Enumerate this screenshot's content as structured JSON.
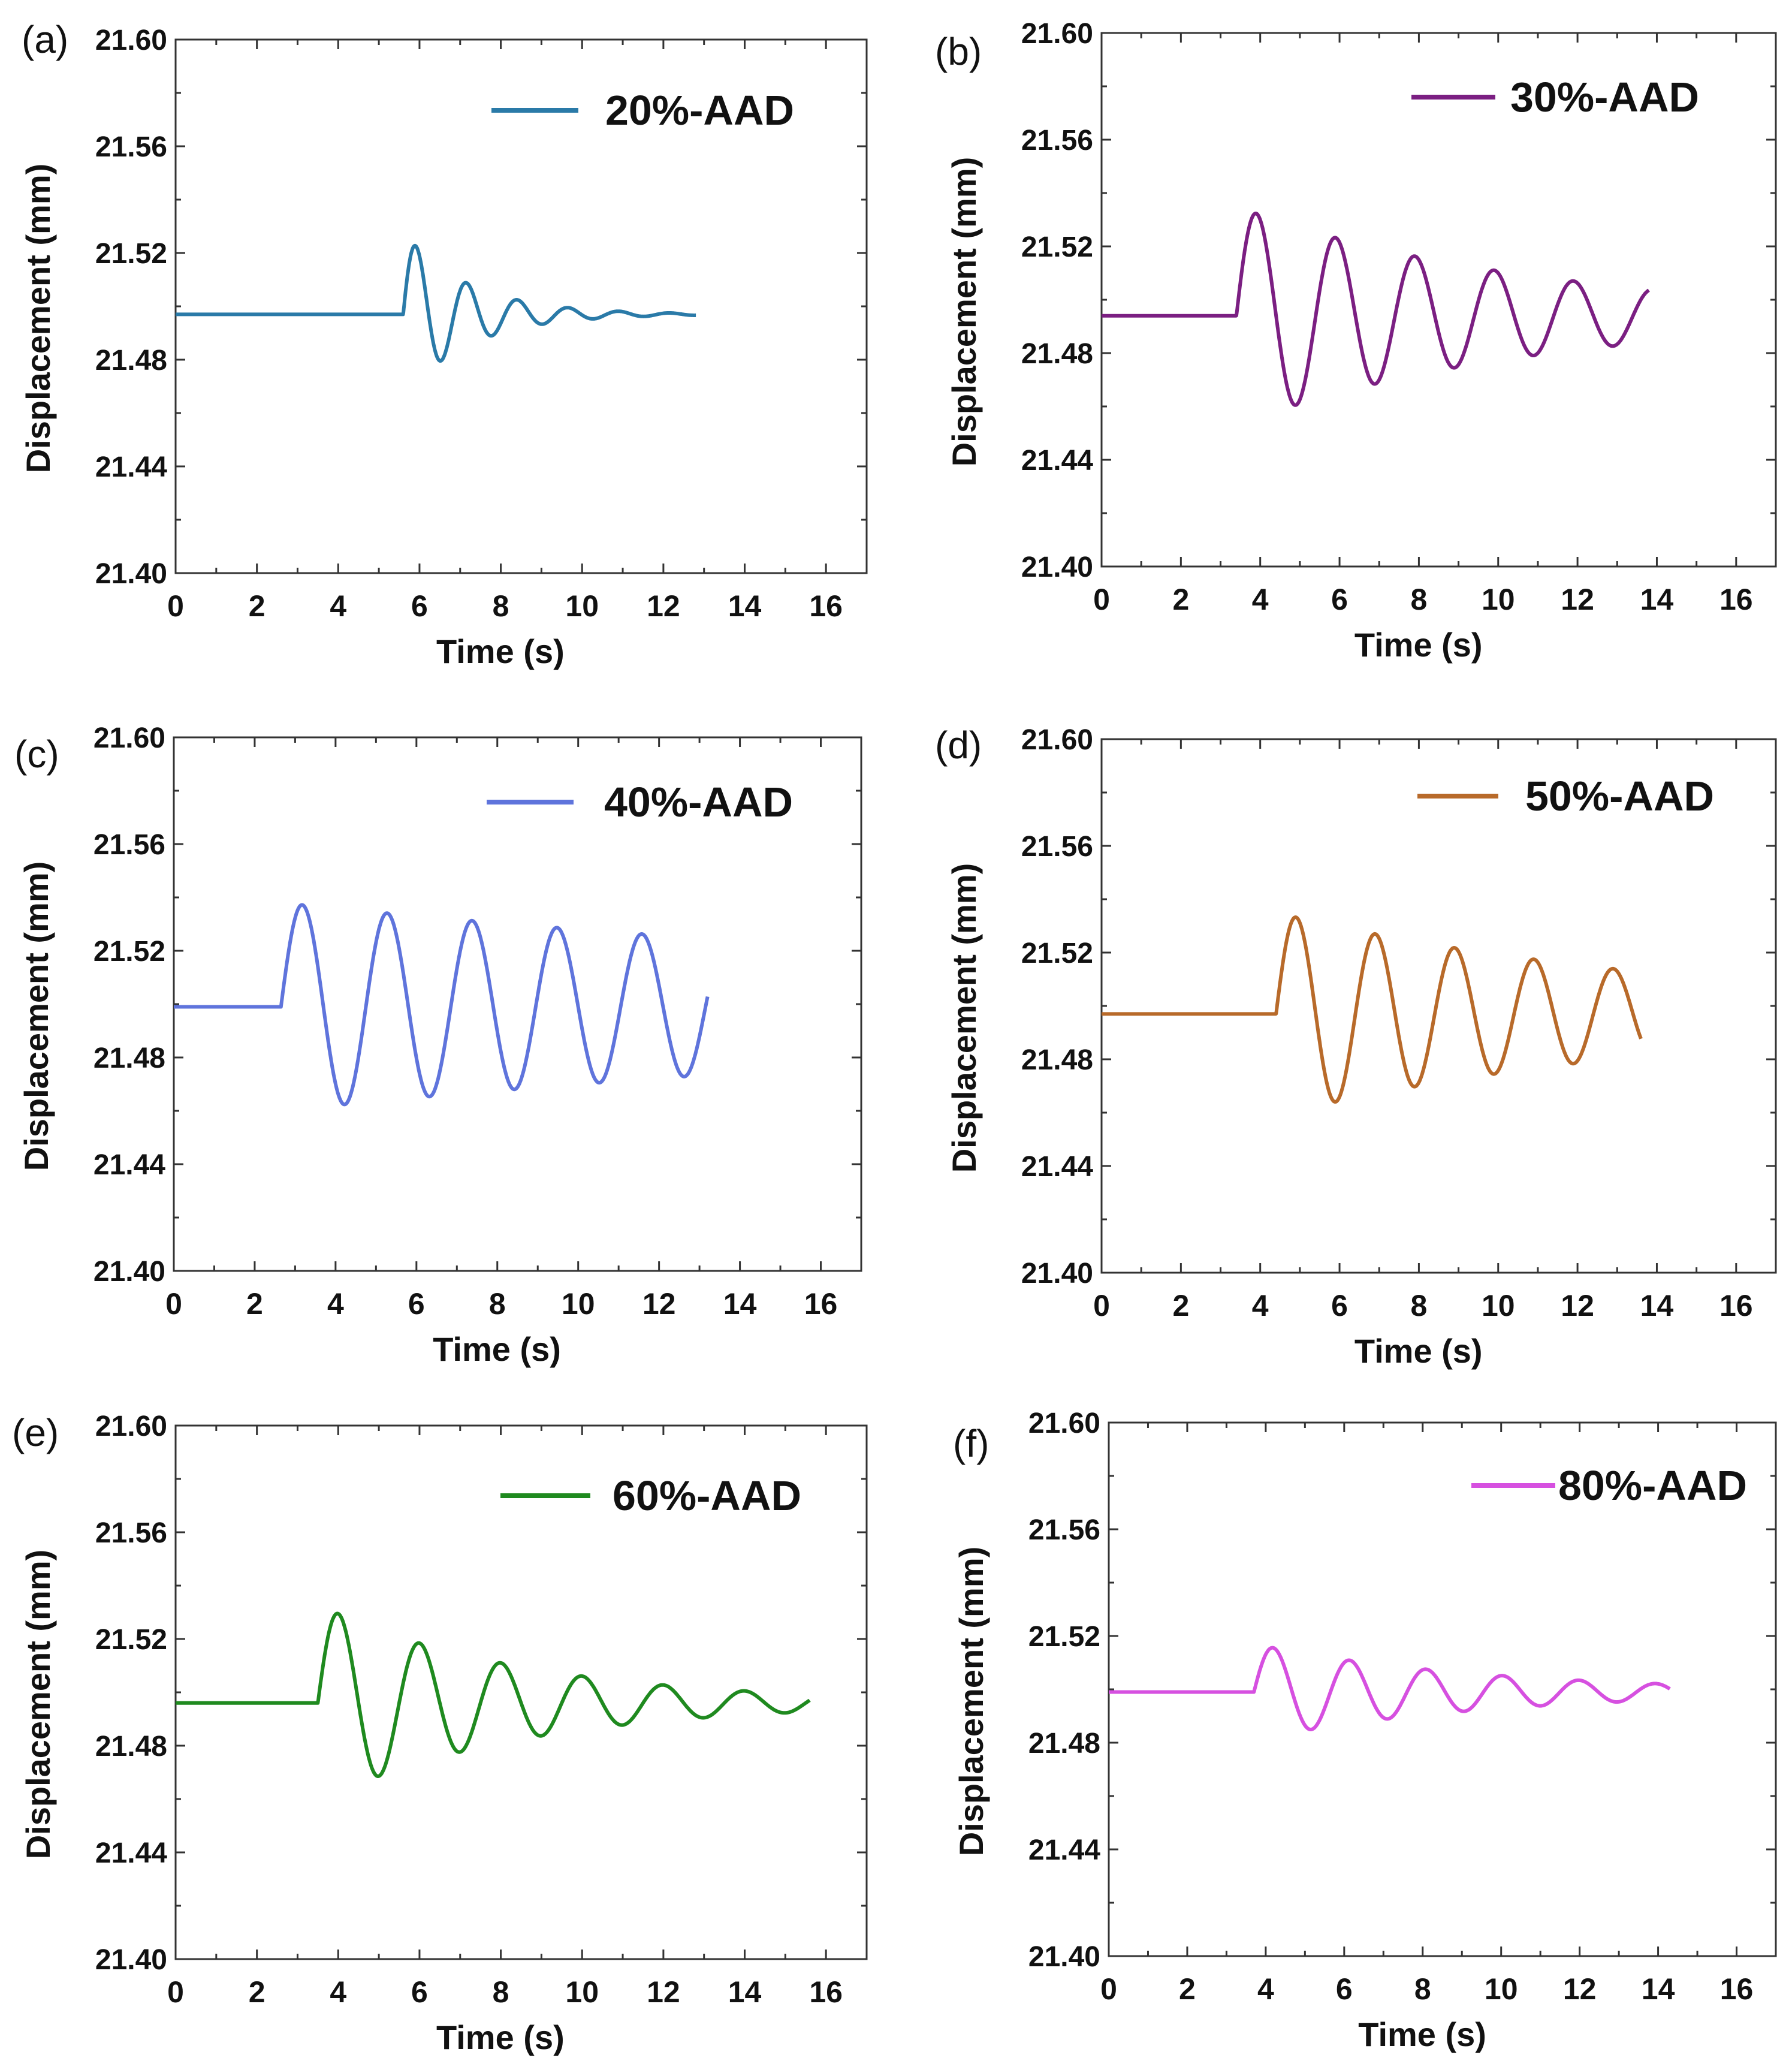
{
  "chart_data": [
    {
      "panel": "(a)",
      "type": "line",
      "series": [
        {
          "name": "20%-AAD",
          "color": "#2a7aa8",
          "amplitude": 0.031,
          "damping": 0.62,
          "period": 1.25,
          "end_time": 12.8
        }
      ],
      "baseline": 21.497,
      "start_time": 5.6,
      "xlabel": "Time (s)",
      "ylabel": "Displacement (mm)",
      "xlim": [
        0,
        17
      ],
      "ylim": [
        21.4,
        21.6
      ],
      "x_ticks": [
        "0",
        "2",
        "4",
        "6",
        "8",
        "10",
        "12",
        "14",
        "16"
      ],
      "y_ticks": [
        "21.40",
        "21.44",
        "21.48",
        "21.52",
        "21.56",
        "21.60"
      ]
    },
    {
      "panel": "(b)",
      "type": "line",
      "series": [
        {
          "name": "30%-AAD",
          "color": "#7b1f82",
          "amplitude": 0.041,
          "damping": 0.135,
          "period": 2.0,
          "end_time": 13.8
        }
      ],
      "baseline": 21.494,
      "start_time": 3.4,
      "xlabel": "Time (s)",
      "ylabel": "Displacement (mm)",
      "xlim": [
        0,
        17
      ],
      "ylim": [
        21.4,
        21.6
      ],
      "x_ticks": [
        "0",
        "2",
        "4",
        "6",
        "8",
        "10",
        "12",
        "14",
        "16"
      ],
      "y_ticks": [
        "21.40",
        "21.44",
        "21.48",
        "21.52",
        "21.56",
        "21.60"
      ]
    },
    {
      "panel": "(c)",
      "type": "line",
      "series": [
        {
          "name": "40%-AAD",
          "color": "#5f74dc",
          "amplitude": 0.039,
          "damping": 0.04,
          "period": 2.1,
          "end_time": 13.2
        }
      ],
      "baseline": 21.499,
      "start_time": 2.65,
      "xlabel": "Time (s)",
      "ylabel": "Displacement (mm)",
      "xlim": [
        0,
        17
      ],
      "ylim": [
        21.4,
        21.6
      ],
      "x_ticks": [
        "0",
        "2",
        "4",
        "6",
        "8",
        "10",
        "12",
        "14",
        "16"
      ],
      "y_ticks": [
        "21.40",
        "21.44",
        "21.48",
        "21.52",
        "21.56",
        "21.60"
      ]
    },
    {
      "panel": "(d)",
      "type": "line",
      "series": [
        {
          "name": "50%-AAD",
          "color": "#b86a2a",
          "amplitude": 0.038,
          "damping": 0.095,
          "period": 2.0,
          "end_time": 13.6
        }
      ],
      "baseline": 21.497,
      "start_time": 4.4,
      "xlabel": "Time (s)",
      "ylabel": "Displacement (mm)",
      "xlim": [
        0,
        17
      ],
      "ylim": [
        21.4,
        21.6
      ],
      "x_ticks": [
        "0",
        "2",
        "4",
        "6",
        "8",
        "10",
        "12",
        "14",
        "16"
      ],
      "y_ticks": [
        "21.40",
        "21.44",
        "21.48",
        "21.52",
        "21.56",
        "21.60"
      ]
    },
    {
      "panel": "(e)",
      "type": "line",
      "series": [
        {
          "name": "60%-AAD",
          "color": "#1f8a1f",
          "amplitude": 0.037,
          "damping": 0.2,
          "period": 2.0,
          "end_time": 15.6
        }
      ],
      "baseline": 21.496,
      "start_time": 3.5,
      "xlabel": "Time (s)",
      "ylabel": "Displacement (mm)",
      "xlim": [
        0,
        17
      ],
      "ylim": [
        21.4,
        21.6
      ],
      "x_ticks": [
        "0",
        "2",
        "4",
        "6",
        "8",
        "10",
        "12",
        "14",
        "16"
      ],
      "y_ticks": [
        "21.40",
        "21.44",
        "21.48",
        "21.52",
        "21.56",
        "21.60"
      ]
    },
    {
      "panel": "(f)",
      "type": "line",
      "series": [
        {
          "name": "80%-AAD",
          "color": "#d650e0",
          "amplitude": 0.018,
          "damping": 0.17,
          "period": 1.95,
          "end_time": 14.3
        }
      ],
      "baseline": 21.499,
      "start_time": 3.7,
      "xlabel": "Time (s)",
      "ylabel": "Displacement (mm)",
      "xlim": [
        0,
        17
      ],
      "ylim": [
        21.4,
        21.6
      ],
      "x_ticks": [
        "0",
        "2",
        "4",
        "6",
        "8",
        "10",
        "12",
        "14",
        "16"
      ],
      "y_ticks": [
        "21.40",
        "21.44",
        "21.48",
        "21.52",
        "21.56",
        "21.60"
      ]
    }
  ]
}
